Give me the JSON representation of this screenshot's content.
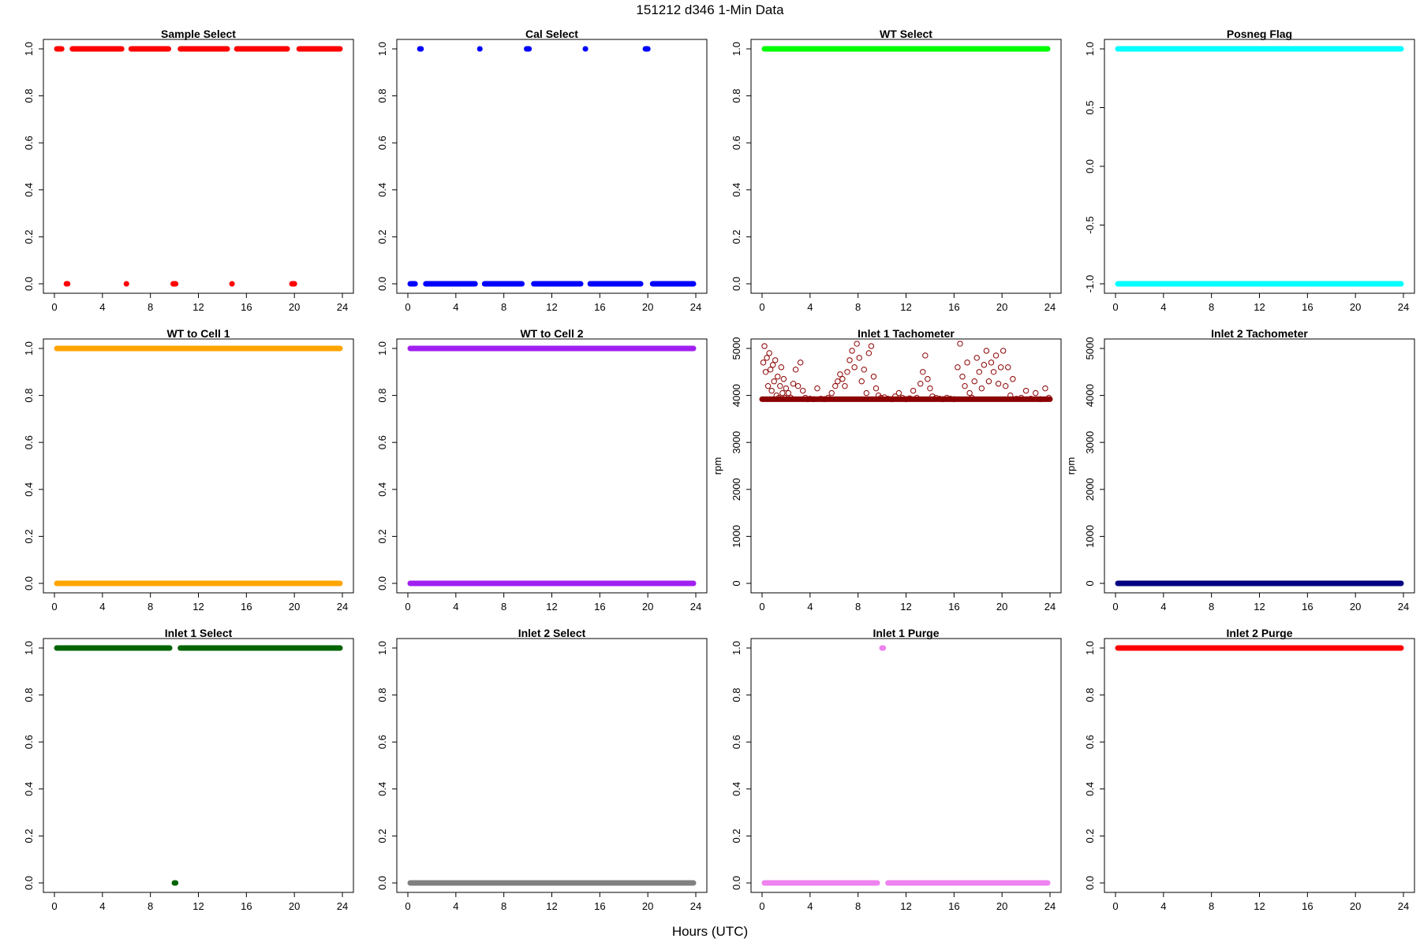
{
  "figure": {
    "title": "151212   d346   1-Min Data",
    "xlabel": "Hours (UTC)"
  },
  "chart_data": [
    {
      "type": "scatter",
      "title": "Sample Select",
      "xlabel": "",
      "ylabel": "",
      "xlim": [
        0,
        24
      ],
      "ylim": [
        0,
        1
      ],
      "xticks": [
        0,
        4,
        8,
        12,
        16,
        20,
        24
      ],
      "yticks": [
        "0.0",
        "0.2",
        "0.4",
        "0.6",
        "0.8",
        "1.0"
      ],
      "color": "#ff0000",
      "marker": "filled",
      "segments": [
        {
          "y": 1,
          "x": [
            0,
            0.8
          ]
        },
        {
          "y": 0,
          "x": [
            0.8,
            1.3
          ]
        },
        {
          "y": 1,
          "x": [
            1.3,
            5.8
          ]
        },
        {
          "y": 0,
          "x": [
            5.8,
            6.2
          ]
        },
        {
          "y": 1,
          "x": [
            6.2,
            9.7
          ]
        },
        {
          "y": 0,
          "x": [
            9.7,
            10.3
          ]
        },
        {
          "y": 1,
          "x": [
            10.3,
            14.6
          ]
        },
        {
          "y": 0,
          "x": [
            14.6,
            15.0
          ]
        },
        {
          "y": 1,
          "x": [
            15.0,
            19.6
          ]
        },
        {
          "y": 0,
          "x": [
            19.6,
            20.2
          ]
        },
        {
          "y": 1,
          "x": [
            20.2,
            24
          ]
        }
      ]
    },
    {
      "type": "scatter",
      "title": "Cal Select",
      "xlabel": "",
      "ylabel": "",
      "xlim": [
        0,
        24
      ],
      "ylim": [
        0,
        1
      ],
      "xticks": [
        0,
        4,
        8,
        12,
        16,
        20,
        24
      ],
      "yticks": [
        "0.0",
        "0.2",
        "0.4",
        "0.6",
        "0.8",
        "1.0"
      ],
      "color": "#0000ff",
      "marker": "filled",
      "segments": [
        {
          "y": 0,
          "x": [
            0,
            0.8
          ]
        },
        {
          "y": 1,
          "x": [
            0.8,
            1.3
          ]
        },
        {
          "y": 0,
          "x": [
            1.3,
            5.8
          ]
        },
        {
          "y": 1,
          "x": [
            5.8,
            6.2
          ]
        },
        {
          "y": 0,
          "x": [
            6.2,
            9.7
          ]
        },
        {
          "y": 1,
          "x": [
            9.7,
            10.3
          ]
        },
        {
          "y": 0,
          "x": [
            10.3,
            14.6
          ]
        },
        {
          "y": 1,
          "x": [
            14.6,
            15.0
          ]
        },
        {
          "y": 0,
          "x": [
            15.0,
            19.6
          ]
        },
        {
          "y": 1,
          "x": [
            19.6,
            20.2
          ]
        },
        {
          "y": 0,
          "x": [
            20.2,
            24
          ]
        }
      ]
    },
    {
      "type": "scatter",
      "title": "WT Select",
      "xlabel": "",
      "ylabel": "",
      "xlim": [
        0,
        24
      ],
      "ylim": [
        0,
        1
      ],
      "xticks": [
        0,
        4,
        8,
        12,
        16,
        20,
        24
      ],
      "yticks": [
        "0.0",
        "0.2",
        "0.4",
        "0.6",
        "0.8",
        "1.0"
      ],
      "color": "#00ff00",
      "marker": "filled",
      "segments": [
        {
          "y": 1,
          "x": [
            0,
            24
          ]
        }
      ]
    },
    {
      "type": "scatter",
      "title": "Posneg Flag",
      "xlabel": "",
      "ylabel": "",
      "xlim": [
        0,
        24
      ],
      "ylim": [
        -1,
        1
      ],
      "xticks": [
        0,
        4,
        8,
        12,
        16,
        20,
        24
      ],
      "yticks": [
        "-1.0",
        "-0.5",
        "0.0",
        "0.5",
        "1.0"
      ],
      "color": "#00ffff",
      "marker": "filled",
      "segments": [
        {
          "y": 1,
          "x": [
            0,
            24
          ]
        },
        {
          "y": -1,
          "x": [
            0,
            24
          ]
        }
      ]
    },
    {
      "type": "scatter",
      "title": "WT to Cell 1",
      "xlabel": "",
      "ylabel": "",
      "xlim": [
        0,
        24
      ],
      "ylim": [
        0,
        1
      ],
      "xticks": [
        0,
        4,
        8,
        12,
        16,
        20,
        24
      ],
      "yticks": [
        "0.0",
        "0.2",
        "0.4",
        "0.6",
        "0.8",
        "1.0"
      ],
      "color": "#ffa500",
      "marker": "filled",
      "segments": [
        {
          "y": 1,
          "x": [
            0,
            24
          ]
        },
        {
          "y": 0,
          "x": [
            0,
            24
          ]
        }
      ]
    },
    {
      "type": "scatter",
      "title": "WT to Cell 2",
      "xlabel": "",
      "ylabel": "",
      "xlim": [
        0,
        24
      ],
      "ylim": [
        0,
        1
      ],
      "xticks": [
        0,
        4,
        8,
        12,
        16,
        20,
        24
      ],
      "yticks": [
        "0.0",
        "0.2",
        "0.4",
        "0.6",
        "0.8",
        "1.0"
      ],
      "color": "#a020f0",
      "marker": "filled",
      "segments": [
        {
          "y": 1,
          "x": [
            0,
            24
          ]
        },
        {
          "y": 0,
          "x": [
            0,
            24
          ]
        }
      ]
    },
    {
      "type": "scatter",
      "title": "Inlet 1 Tachometer",
      "xlabel": "",
      "ylabel": "rpm",
      "xlim": [
        0,
        24
      ],
      "ylim": [
        0,
        5000
      ],
      "xticks": [
        0,
        4,
        8,
        12,
        16,
        20,
        24
      ],
      "yticks": [
        "0",
        "1000",
        "2000",
        "3000",
        "4000",
        "5000"
      ],
      "color": "#8b0000",
      "marker": "open",
      "points": [
        [
          0.1,
          4700
        ],
        [
          0.2,
          5050
        ],
        [
          0.3,
          4500
        ],
        [
          0.4,
          4800
        ],
        [
          0.5,
          4200
        ],
        [
          0.6,
          4900
        ],
        [
          0.7,
          4550
        ],
        [
          0.8,
          4100
        ],
        [
          0.9,
          4650
        ],
        [
          1.0,
          4300
        ],
        [
          1.1,
          4750
        ],
        [
          1.2,
          4000
        ],
        [
          1.3,
          4400
        ],
        [
          1.4,
          3950
        ],
        [
          1.5,
          4200
        ],
        [
          1.6,
          4600
        ],
        [
          1.7,
          4050
        ],
        [
          1.8,
          4350
        ],
        [
          1.9,
          3950
        ],
        [
          2.0,
          4150
        ],
        [
          2.2,
          4050
        ],
        [
          2.4,
          3950
        ],
        [
          2.6,
          4250
        ],
        [
          2.8,
          4550
        ],
        [
          3.0,
          4200
        ],
        [
          3.2,
          4700
        ],
        [
          3.4,
          4100
        ],
        [
          3.6,
          3950
        ],
        [
          3.8,
          3920
        ],
        [
          4.0,
          3930
        ],
        [
          4.3,
          3920
        ],
        [
          4.6,
          4150
        ],
        [
          4.9,
          3930
        ],
        [
          5.2,
          3920
        ],
        [
          5.5,
          3950
        ],
        [
          5.8,
          4050
        ],
        [
          6.1,
          4200
        ],
        [
          6.3,
          4300
        ],
        [
          6.5,
          4450
        ],
        [
          6.7,
          4350
        ],
        [
          6.9,
          4200
        ],
        [
          7.1,
          4500
        ],
        [
          7.3,
          4750
        ],
        [
          7.5,
          4950
        ],
        [
          7.7,
          4600
        ],
        [
          7.9,
          5100
        ],
        [
          8.1,
          4800
        ],
        [
          8.3,
          4300
        ],
        [
          8.5,
          4550
        ],
        [
          8.7,
          4050
        ],
        [
          8.9,
          4900
        ],
        [
          9.1,
          5050
        ],
        [
          9.3,
          4400
        ],
        [
          9.5,
          4150
        ],
        [
          9.7,
          4000
        ],
        [
          9.9,
          3950
        ],
        [
          10.2,
          3960
        ],
        [
          10.5,
          3930
        ],
        [
          10.8,
          3920
        ],
        [
          11.1,
          3980
        ],
        [
          11.4,
          4050
        ],
        [
          11.7,
          3950
        ],
        [
          12.0,
          3920
        ],
        [
          12.3,
          3940
        ],
        [
          12.6,
          4100
        ],
        [
          12.9,
          3950
        ],
        [
          13.2,
          4250
        ],
        [
          13.4,
          4500
        ],
        [
          13.6,
          4850
        ],
        [
          13.8,
          4350
        ],
        [
          14.0,
          4150
        ],
        [
          14.2,
          3980
        ],
        [
          14.5,
          3950
        ],
        [
          14.8,
          3930
        ],
        [
          15.1,
          3920
        ],
        [
          15.4,
          3950
        ],
        [
          15.7,
          3930
        ],
        [
          16.0,
          3920
        ],
        [
          16.3,
          4600
        ],
        [
          16.5,
          5100
        ],
        [
          16.7,
          4400
        ],
        [
          16.9,
          4200
        ],
        [
          17.1,
          4700
        ],
        [
          17.3,
          4050
        ],
        [
          17.5,
          3950
        ],
        [
          17.7,
          4300
        ],
        [
          17.9,
          4800
        ],
        [
          18.1,
          4500
        ],
        [
          18.3,
          4150
        ],
        [
          18.5,
          4650
        ],
        [
          18.7,
          4950
        ],
        [
          18.9,
          4300
        ],
        [
          19.1,
          4700
        ],
        [
          19.3,
          4500
        ],
        [
          19.5,
          4850
        ],
        [
          19.7,
          4250
        ],
        [
          19.9,
          4600
        ],
        [
          20.1,
          4950
        ],
        [
          20.3,
          4200
        ],
        [
          20.5,
          4600
        ],
        [
          20.7,
          4000
        ],
        [
          20.9,
          4350
        ],
        [
          21.2,
          3930
        ],
        [
          21.6,
          3950
        ],
        [
          22.0,
          4100
        ],
        [
          22.4,
          3930
        ],
        [
          22.8,
          4050
        ],
        [
          23.2,
          3920
        ],
        [
          23.6,
          4150
        ],
        [
          23.9,
          3950
        ]
      ],
      "baseline": {
        "y": 3920,
        "x": [
          0,
          24
        ]
      }
    },
    {
      "type": "scatter",
      "title": "Inlet 2 Tachometer",
      "xlabel": "",
      "ylabel": "rpm",
      "xlim": [
        0,
        24
      ],
      "ylim": [
        0,
        5000
      ],
      "xticks": [
        0,
        4,
        8,
        12,
        16,
        20,
        24
      ],
      "yticks": [
        "0",
        "1000",
        "2000",
        "3000",
        "4000",
        "5000"
      ],
      "color": "#000080",
      "marker": "filled",
      "segments": [
        {
          "y": 0,
          "x": [
            0,
            24
          ]
        }
      ]
    },
    {
      "type": "scatter",
      "title": "Inlet 1 Select",
      "xlabel": "",
      "ylabel": "",
      "xlim": [
        0,
        24
      ],
      "ylim": [
        0,
        1
      ],
      "xticks": [
        0,
        4,
        8,
        12,
        16,
        20,
        24
      ],
      "yticks": [
        "0.0",
        "0.2",
        "0.4",
        "0.6",
        "0.8",
        "1.0"
      ],
      "color": "#006400",
      "marker": "filled",
      "segments": [
        {
          "y": 1,
          "x": [
            0,
            9.8
          ]
        },
        {
          "y": 0,
          "x": [
            9.8,
            10.3
          ]
        },
        {
          "y": 1,
          "x": [
            10.3,
            24
          ]
        }
      ]
    },
    {
      "type": "scatter",
      "title": "Inlet 2 Select",
      "xlabel": "",
      "ylabel": "",
      "xlim": [
        0,
        24
      ],
      "ylim": [
        0,
        1
      ],
      "xticks": [
        0,
        4,
        8,
        12,
        16,
        20,
        24
      ],
      "yticks": [
        "0.0",
        "0.2",
        "0.4",
        "0.6",
        "0.8",
        "1.0"
      ],
      "color": "#808080",
      "marker": "filled",
      "segments": [
        {
          "y": 0,
          "x": [
            0,
            24
          ]
        }
      ]
    },
    {
      "type": "scatter",
      "title": "Inlet 1 Purge",
      "xlabel": "",
      "ylabel": "",
      "xlim": [
        0,
        24
      ],
      "ylim": [
        0,
        1
      ],
      "xticks": [
        0,
        4,
        8,
        12,
        16,
        20,
        24
      ],
      "yticks": [
        "0.0",
        "0.2",
        "0.4",
        "0.6",
        "0.8",
        "1.0"
      ],
      "color": "#ee82ee",
      "marker": "filled",
      "segments": [
        {
          "y": 0,
          "x": [
            0,
            9.8
          ]
        },
        {
          "y": 1,
          "x": [
            9.8,
            10.3
          ]
        },
        {
          "y": 0,
          "x": [
            10.3,
            24
          ]
        }
      ]
    },
    {
      "type": "scatter",
      "title": "Inlet 2 Purge",
      "xlabel": "",
      "ylabel": "",
      "xlim": [
        0,
        24
      ],
      "ylim": [
        0,
        1
      ],
      "xticks": [
        0,
        4,
        8,
        12,
        16,
        20,
        24
      ],
      "yticks": [
        "0.0",
        "0.2",
        "0.4",
        "0.6",
        "0.8",
        "1.0"
      ],
      "color": "#ff0000",
      "marker": "filled",
      "segments": [
        {
          "y": 1,
          "x": [
            0,
            24
          ]
        }
      ]
    }
  ]
}
